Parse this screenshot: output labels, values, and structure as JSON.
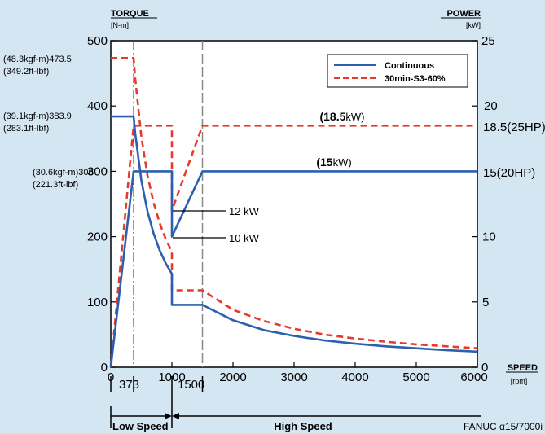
{
  "chart_data": {
    "type": "line",
    "title": "",
    "xlabel": "SPEED",
    "xunit": "[rpm]",
    "xlim": [
      0,
      6000
    ],
    "xticks": [
      "0",
      "1000",
      "2000",
      "3000",
      "4000",
      "5000",
      "6000"
    ],
    "left_axis": {
      "label": "TORQUE",
      "unit": "[N-m]",
      "ylim": [
        0,
        500
      ],
      "ticks": [
        "0",
        "100",
        "200",
        "300",
        "400",
        "500"
      ]
    },
    "right_axis": {
      "label": "POWER",
      "unit": "[kW]",
      "ylim": [
        0,
        25
      ],
      "ticks": [
        "0",
        "5",
        "10",
        "15",
        "20",
        "25"
      ]
    },
    "grid": false,
    "legend_position": "top-right",
    "series": [
      {
        "name": "Continuous",
        "quantity": "power",
        "color": "#2d5fb0",
        "style": "solid",
        "x": [
          0,
          373,
          1000,
          1000,
          1500,
          6000
        ],
        "y": [
          0,
          15,
          15,
          10,
          15,
          15
        ]
      },
      {
        "name": "30min-S3-60%",
        "quantity": "power",
        "color": "#e83a2a",
        "style": "dashed",
        "x": [
          0,
          373,
          1000,
          1000,
          1500,
          6000
        ],
        "y": [
          0,
          18.5,
          18.5,
          12,
          18.5,
          18.5
        ]
      },
      {
        "name": "Continuous",
        "quantity": "torque",
        "color": "#2d5fb0",
        "style": "solid",
        "x": [
          0,
          373,
          400,
          500,
          600,
          700,
          800,
          900,
          1000,
          1000,
          1500,
          2000,
          2500,
          3000,
          3500,
          4000,
          4500,
          5000,
          5500,
          6000
        ],
        "y": [
          383.9,
          383.9,
          358,
          286,
          239,
          205,
          179,
          159,
          143,
          95.5,
          95.5,
          72,
          57,
          48,
          41,
          36,
          32,
          29,
          26,
          24
        ]
      },
      {
        "name": "30min-S3-60%",
        "quantity": "torque",
        "color": "#e83a2a",
        "style": "dashed",
        "x": [
          0,
          373,
          400,
          500,
          600,
          700,
          800,
          900,
          1000,
          1000,
          1500,
          2000,
          2500,
          3000,
          3500,
          4000,
          4500,
          5000,
          5500,
          6000
        ],
        "y": [
          473.5,
          473.5,
          442,
          353,
          294,
          252,
          221,
          196,
          177,
          117.8,
          117.8,
          88,
          71,
          59,
          50,
          44,
          39,
          35,
          32,
          29
        ]
      }
    ],
    "left_annotations": [
      {
        "line1": "(48.3kgf-m)473.5",
        "line2": "(349.2ft-lbf)",
        "value": 473.5
      },
      {
        "line1": "(39.1kgf-m)383.9",
        "line2": "(283.1ft-lbf)",
        "value": 383.9
      },
      {
        "line1": "(30.6kgf-m)300",
        "line2": "(221.3ft-lbf)",
        "value": 300
      }
    ],
    "right_labels": [
      {
        "text": "18.5(25HP)",
        "value": 18.5
      },
      {
        "text": "15(20HP)",
        "value": 15
      }
    ],
    "power_labels": [
      {
        "bold": "(18.5",
        "rest": "kW)",
        "value": 18.5
      },
      {
        "bold": "(15",
        "rest": "kW)",
        "value": 15
      }
    ],
    "callouts": [
      {
        "text": "12 kW",
        "value": 12
      },
      {
        "text": "10 kW",
        "value": 10
      }
    ],
    "speed_markers": [
      {
        "text": "373",
        "x": 373
      },
      {
        "text": "1500",
        "x": 1500
      }
    ],
    "ranges": [
      {
        "text": "Low Speed",
        "from": 0,
        "to": 1000
      },
      {
        "text": "High Speed",
        "from": 1000,
        "to": 6000
      }
    ],
    "footer": "FANUC α15/7000i"
  }
}
